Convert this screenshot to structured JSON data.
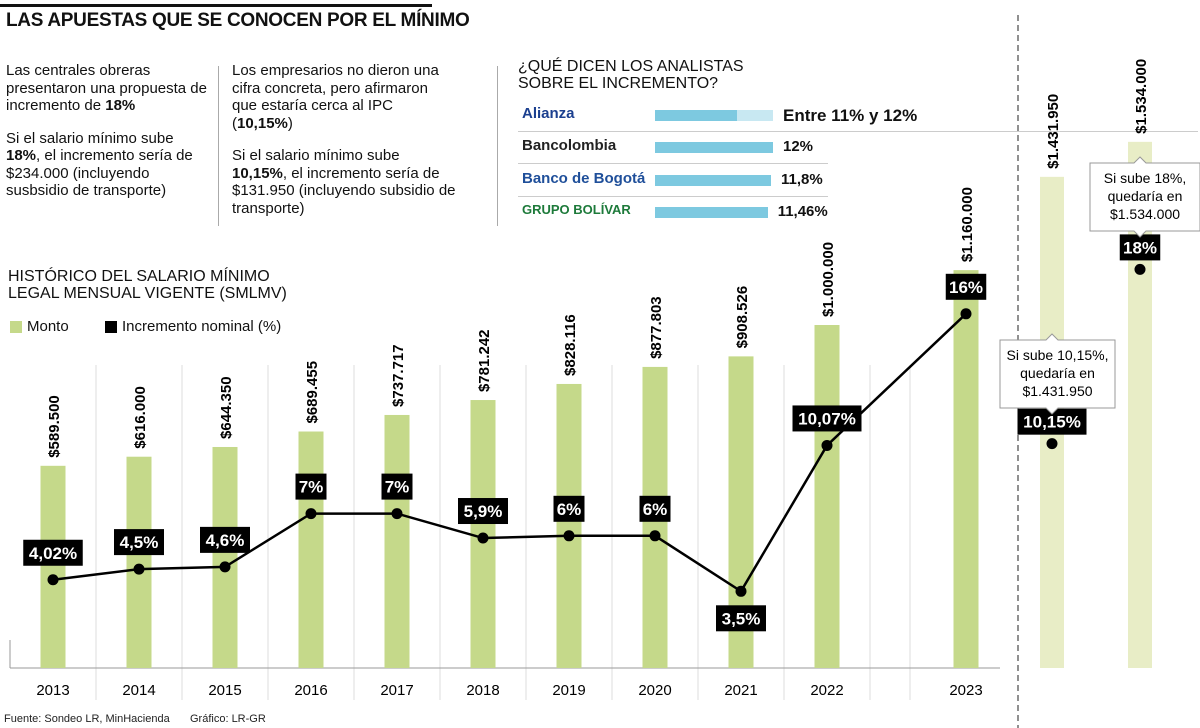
{
  "title": "LAS APUESTAS QUE SE CONOCEN POR EL MÍNIMO",
  "columns": [
    {
      "p1_pre": "Las centrales obreras presentaron una propuesta de incremento de ",
      "p1_bold": "18%",
      "p1_post": "",
      "p2_pre": "Si el salario mínimo sube ",
      "p2_bold": "18%",
      "p2_post": ", el incremento sería de $234.000 (incluyendo susbsidio de transporte)"
    },
    {
      "p1_pre": "Los empresarios no dieron una cifra concreta, pero afirmaron que estaría cerca al IPC (",
      "p1_bold": "10,15%",
      "p1_post": ")",
      "p2_pre": "Si el salario mínimo sube ",
      "p2_bold": "10,15%",
      "p2_post": ", el incremento sería de $131.950 (incluyendo subsidio de transporte)"
    }
  ],
  "analysts": {
    "title_line1": "¿QUÉ DICEN LOS ANALISTAS",
    "title_line2": "SOBRE EL INCREMENTO?",
    "bar_color": "#7dc9e0",
    "items": [
      {
        "name": "Alianza",
        "label": "Entre 11%  y 12%",
        "low": 11,
        "high": 12,
        "color": "#1b3f8f"
      },
      {
        "name": "Bancolombia",
        "label": "12%",
        "value": 12,
        "color": "#222222"
      },
      {
        "name": "Banco de Bogotá",
        "label": "11,8%",
        "value": 11.8,
        "color": "#1f4f9a"
      },
      {
        "name": "GRUPO BOLÍVAR",
        "label": "11,46%",
        "value": 11.46,
        "color": "#1d7a3a"
      }
    ]
  },
  "chart_heading_line1": "HISTÓRICO DEL SALARIO MÍNIMO",
  "chart_heading_line2": "LEGAL MENSUAL VIGENTE (SMLMV)",
  "footer": {
    "source": "Fuente: Sondeo LR, MinHacienda",
    "credit": "Gráfico: LR-GR"
  },
  "chart_data": {
    "type": "bar+line",
    "categories": [
      "2013",
      "2014",
      "2015",
      "2016",
      "2017",
      "2018",
      "2019",
      "2020",
      "2021",
      "2022",
      "2023"
    ],
    "series": [
      {
        "name": "Monto",
        "type": "bar",
        "color": "#c5d98a",
        "values": [
          589500,
          616000,
          644350,
          689455,
          737717,
          781242,
          828116,
          877803,
          908526,
          1000000,
          1160000
        ],
        "labels": [
          "$589.500",
          "$616.000",
          "$644.350",
          "$689.455",
          "$737.717",
          "$781.242",
          "$828.116",
          "$877.803",
          "$908.526",
          "$1.000.000",
          "$1.160.000"
        ]
      },
      {
        "name": "Incremento nominal (%)",
        "type": "line",
        "color": "#000000",
        "values": [
          4.02,
          4.5,
          4.6,
          7,
          7,
          5.9,
          6,
          6,
          3.5,
          10.07,
          16
        ],
        "labels": [
          "4,02%",
          "4,5%",
          "4,6%",
          "7%",
          "7%",
          "5,9%",
          "6%",
          "6%",
          "3,5%",
          "10,07%",
          "16%"
        ]
      }
    ],
    "projections": [
      {
        "pct": 10.15,
        "pct_label": "10,15%",
        "amount": 1431950,
        "amount_label": "$1.431.950",
        "note": [
          "Si sube 10,15%,",
          "quedaría en",
          "$1.431.950"
        ]
      },
      {
        "pct": 18,
        "pct_label": "18%",
        "amount": 1534000,
        "amount_label": "$1.534.000",
        "note": [
          "Si sube 18%,",
          "quedaría en",
          "$1.534.000"
        ]
      }
    ],
    "projection_color": "#e8edc6",
    "legend_position": "top-left",
    "grid": false
  }
}
